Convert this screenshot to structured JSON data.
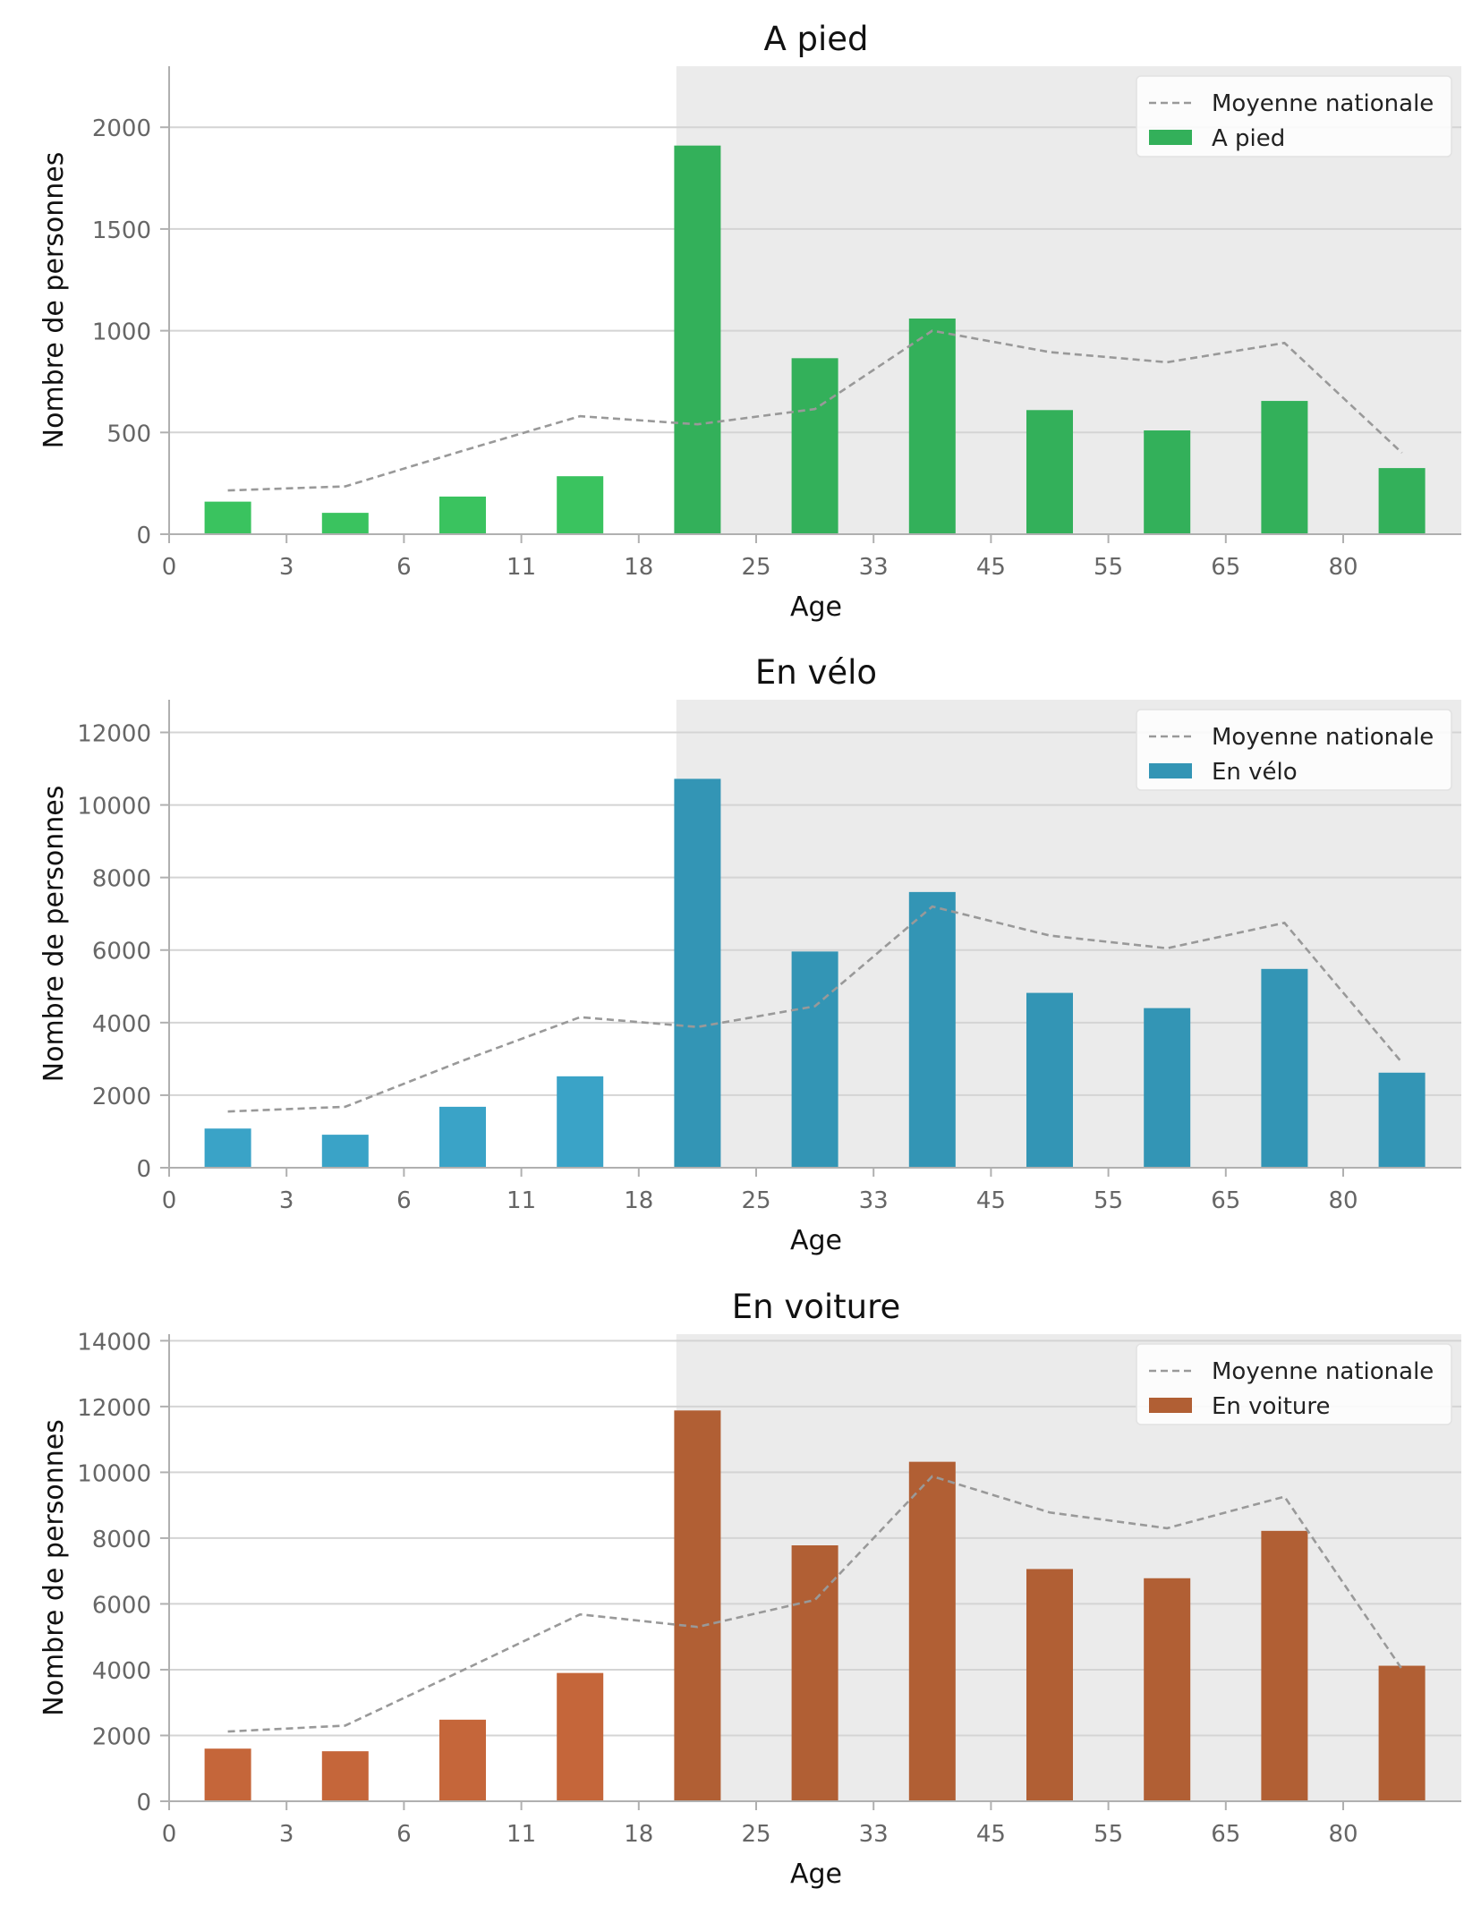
{
  "chart_data": [
    {
      "type": "bar",
      "title": "A pied",
      "xlabel": "Age",
      "ylabel": "Nombre de personnes",
      "x_ticks": [
        "0",
        "3",
        "6",
        "11",
        "18",
        "25",
        "33",
        "45",
        "55",
        "65",
        "80"
      ],
      "categories": [
        "0-3",
        "3-6",
        "6-11",
        "11-18",
        "18-25",
        "25-33",
        "33-45",
        "45-55",
        "55-65",
        "65-80",
        "80+"
      ],
      "series": [
        {
          "name": "A pied",
          "type": "bar",
          "values": [
            160,
            105,
            185,
            285,
            1910,
            865,
            1060,
            610,
            510,
            655,
            325
          ]
        },
        {
          "name": "Moyenne nationale",
          "type": "line",
          "values": [
            215,
            235,
            410,
            580,
            540,
            615,
            1000,
            895,
            845,
            940,
            400
          ]
        }
      ],
      "yticks": [
        0,
        500,
        1000,
        1500,
        2000
      ],
      "ylim": [
        0,
        2300
      ],
      "grid": "horizontal",
      "legend": "top-right",
      "shaded_region": {
        "from": "18"
      },
      "colors": {
        "young": "#3ac35f",
        "adult": "#33b05a",
        "line": "#999999",
        "shade": "#ebebeb"
      }
    },
    {
      "type": "bar",
      "title": "En vélo",
      "xlabel": "Age",
      "ylabel": "Nombre de personnes",
      "x_ticks": [
        "0",
        "3",
        "6",
        "11",
        "18",
        "25",
        "33",
        "45",
        "55",
        "65",
        "80"
      ],
      "categories": [
        "0-3",
        "3-6",
        "6-11",
        "11-18",
        "18-25",
        "25-33",
        "33-45",
        "45-55",
        "55-65",
        "65-80",
        "80+"
      ],
      "series": [
        {
          "name": "En vélo",
          "type": "bar",
          "values": [
            1080,
            910,
            1680,
            2520,
            10720,
            5960,
            7600,
            4820,
            4400,
            5480,
            2620
          ]
        },
        {
          "name": "Moyenne nationale",
          "type": "line",
          "values": [
            1550,
            1680,
            2950,
            4150,
            3880,
            4450,
            7200,
            6400,
            6050,
            6750,
            2900
          ]
        }
      ],
      "yticks": [
        0,
        2000,
        4000,
        6000,
        8000,
        10000,
        12000
      ],
      "ylim": [
        0,
        12900
      ],
      "grid": "horizontal",
      "legend": "top-right",
      "shaded_region": {
        "from": "18"
      },
      "colors": {
        "young": "#3aa3c7",
        "adult": "#3395b5",
        "line": "#999999",
        "shade": "#ebebeb"
      }
    },
    {
      "type": "bar",
      "title": "En voiture",
      "xlabel": "Age",
      "ylabel": "Nombre de personnes",
      "x_ticks": [
        "0",
        "3",
        "6",
        "11",
        "18",
        "25",
        "33",
        "45",
        "55",
        "65",
        "80"
      ],
      "categories": [
        "0-3",
        "3-6",
        "6-11",
        "11-18",
        "18-25",
        "25-33",
        "33-45",
        "45-55",
        "55-65",
        "65-80",
        "80+"
      ],
      "series": [
        {
          "name": "En voiture",
          "type": "bar",
          "values": [
            1600,
            1520,
            2480,
            3900,
            11880,
            7780,
            10320,
            7060,
            6780,
            8220,
            4120
          ]
        },
        {
          "name": "Moyenne nationale",
          "type": "line",
          "values": [
            2120,
            2300,
            3980,
            5680,
            5300,
            6120,
            9880,
            8780,
            8300,
            9260,
            4020
          ]
        }
      ],
      "yticks": [
        0,
        2000,
        4000,
        6000,
        8000,
        10000,
        12000,
        14000
      ],
      "ylim": [
        0,
        14200
      ],
      "grid": "horizontal",
      "legend": "top-right",
      "shaded_region": {
        "from": "18"
      },
      "colors": {
        "young": "#c5663a",
        "adult": "#b15f34",
        "line": "#999999",
        "shade": "#ebebeb"
      }
    }
  ]
}
